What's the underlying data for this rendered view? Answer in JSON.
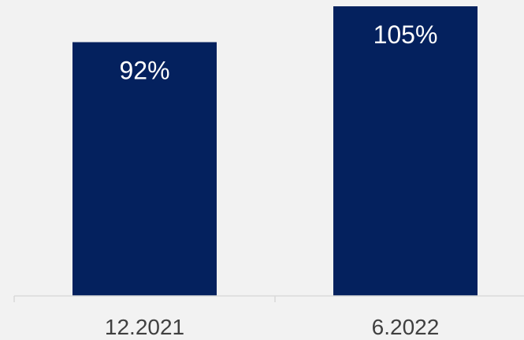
{
  "chart_data": {
    "type": "bar",
    "categories": [
      "12.2021",
      "6.2022"
    ],
    "values": [
      92,
      105
    ],
    "data_labels": [
      "92%",
      "105%"
    ],
    "unit": "%",
    "title": "",
    "xlabel": "",
    "ylabel": "",
    "ylim": [
      0,
      105
    ],
    "grid": false,
    "legend": "none",
    "colors": {
      "bar": "#04215e",
      "background": "#f2f2f2",
      "axis": "#d9d9d9",
      "label_inside": "#ffffff",
      "tick_text": "#404040"
    }
  }
}
